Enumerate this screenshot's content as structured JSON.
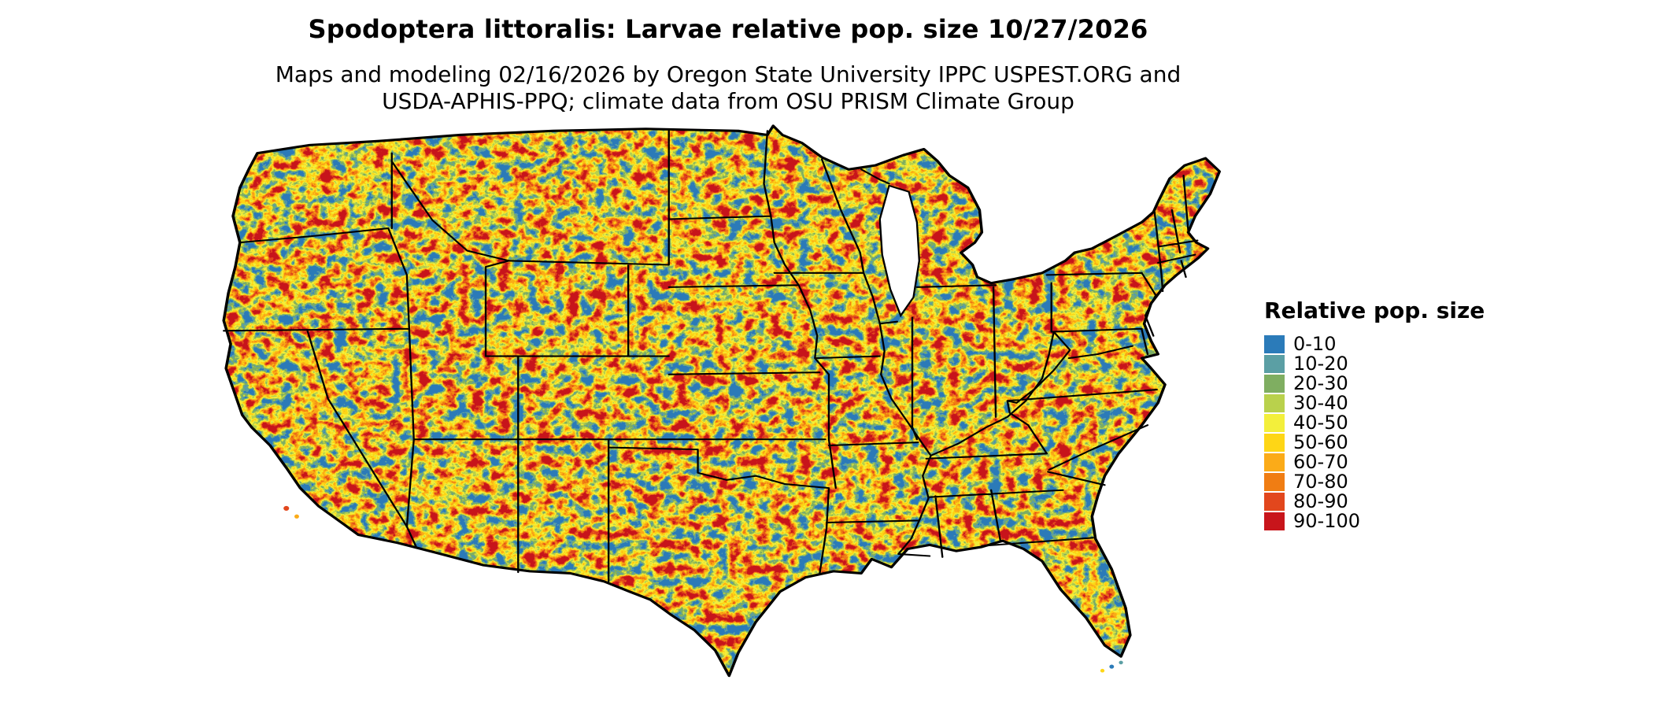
{
  "header": {
    "title": "Spodoptera littoralis: Larvae relative pop. size 10/27/2026",
    "subtitle_line1": "Maps and modeling 02/16/2026 by Oregon State University IPPC USPEST.ORG and",
    "subtitle_line2": "USDA-APHIS-PPQ; climate data from OSU PRISM Climate Group"
  },
  "map": {
    "region": "Continental United States",
    "layer": "Larvae relative population size raster"
  },
  "legend": {
    "title": "Relative pop. size",
    "entries": [
      {
        "label": "0-10",
        "color": "#2b7bb9"
      },
      {
        "label": "10-20",
        "color": "#5b9fa4"
      },
      {
        "label": "20-30",
        "color": "#7fae61"
      },
      {
        "label": "30-40",
        "color": "#b9d14c"
      },
      {
        "label": "40-50",
        "color": "#f3ef3b"
      },
      {
        "label": "50-60",
        "color": "#fed616"
      },
      {
        "label": "60-70",
        "color": "#fbab18"
      },
      {
        "label": "70-80",
        "color": "#f07d13"
      },
      {
        "label": "80-90",
        "color": "#e2471d"
      },
      {
        "label": "90-100",
        "color": "#c8151b"
      }
    ]
  }
}
